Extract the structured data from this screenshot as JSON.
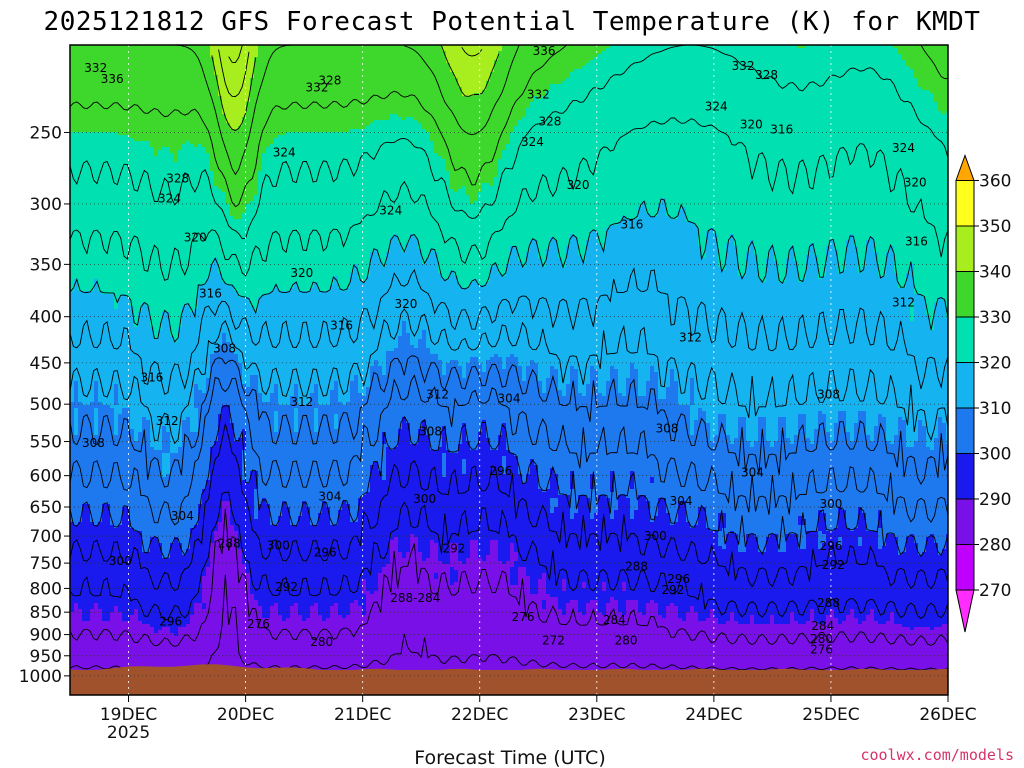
{
  "chart_data": {
    "type": "heatmap",
    "title": "2025121812 GFS Forecast Potential Temperature (K) for KMDT",
    "xlabel": "Forecast Time (UTC)",
    "ylabel": "",
    "credit": "coolwx.com/models",
    "x_tick_labels": [
      "19DEC",
      "20DEC",
      "21DEC",
      "22DEC",
      "23DEC",
      "24DEC",
      "25DEC",
      "26DEC"
    ],
    "x_tick_values": [
      19,
      20,
      21,
      22,
      23,
      24,
      25,
      26
    ],
    "x_sub_label": "2025",
    "xlim": [
      18.5,
      26.0
    ],
    "y_tick_values": [
      250,
      300,
      350,
      400,
      450,
      500,
      550,
      600,
      650,
      700,
      750,
      800,
      850,
      900,
      950,
      1000
    ],
    "y_tick_labels": [
      "250",
      "300",
      "350",
      "400",
      "450",
      "500",
      "550",
      "600",
      "650",
      "700",
      "750",
      "800",
      "850",
      "900",
      "950",
      "1000"
    ],
    "ylim": [
      200,
      1050
    ],
    "y_scale": "log-pressure",
    "grid": true,
    "colorbar": {
      "levels": [
        260,
        270,
        280,
        290,
        300,
        310,
        320,
        330,
        340,
        350,
        360,
        370
      ],
      "tick_labels": [
        "270",
        "280",
        "290",
        "300",
        "310",
        "320",
        "330",
        "340",
        "350",
        "360"
      ],
      "tick_values": [
        270,
        280,
        290,
        300,
        310,
        320,
        330,
        340,
        350,
        360
      ],
      "colors": [
        "#ff2cff",
        "#c000ff",
        "#7a10e8",
        "#1a1aee",
        "#1e78ee",
        "#15b4f0",
        "#00e0b0",
        "#3ed82c",
        "#a8ee1e",
        "#ffff1e",
        "#ffa600"
      ]
    },
    "contour_labels": [
      {
        "text": "332",
        "x": 18.72,
        "p": 212
      },
      {
        "text": "336",
        "x": 18.86,
        "p": 218
      },
      {
        "text": "332",
        "x": 20.61,
        "p": 223
      },
      {
        "text": "328",
        "x": 20.72,
        "p": 219
      },
      {
        "text": "336",
        "x": 22.55,
        "p": 203
      },
      {
        "text": "332",
        "x": 22.5,
        "p": 227
      },
      {
        "text": "328",
        "x": 22.6,
        "p": 243
      },
      {
        "text": "324",
        "x": 22.45,
        "p": 256
      },
      {
        "text": "332",
        "x": 24.25,
        "p": 211
      },
      {
        "text": "328",
        "x": 24.45,
        "p": 216
      },
      {
        "text": "324",
        "x": 24.02,
        "p": 234
      },
      {
        "text": "320",
        "x": 24.32,
        "p": 245
      },
      {
        "text": "316",
        "x": 24.58,
        "p": 248
      },
      {
        "text": "324",
        "x": 25.62,
        "p": 260
      },
      {
        "text": "320",
        "x": 25.72,
        "p": 284
      },
      {
        "text": "316",
        "x": 25.73,
        "p": 330
      },
      {
        "text": "312",
        "x": 25.62,
        "p": 386
      },
      {
        "text": "328",
        "x": 19.42,
        "p": 281
      },
      {
        "text": "324",
        "x": 19.35,
        "p": 296
      },
      {
        "text": "320",
        "x": 19.57,
        "p": 327
      },
      {
        "text": "324",
        "x": 20.33,
        "p": 263
      },
      {
        "text": "324",
        "x": 21.24,
        "p": 305
      },
      {
        "text": "320",
        "x": 22.84,
        "p": 286
      },
      {
        "text": "316",
        "x": 23.3,
        "p": 316
      },
      {
        "text": "320",
        "x": 20.48,
        "p": 358
      },
      {
        "text": "320",
        "x": 21.37,
        "p": 387
      },
      {
        "text": "316",
        "x": 19.7,
        "p": 377
      },
      {
        "text": "316",
        "x": 20.82,
        "p": 409
      },
      {
        "text": "312",
        "x": 23.8,
        "p": 422
      },
      {
        "text": "308",
        "x": 19.82,
        "p": 434
      },
      {
        "text": "316",
        "x": 19.2,
        "p": 467
      },
      {
        "text": "312",
        "x": 19.33,
        "p": 522
      },
      {
        "text": "312",
        "x": 20.48,
        "p": 497
      },
      {
        "text": "312",
        "x": 21.64,
        "p": 488
      },
      {
        "text": "304",
        "x": 22.25,
        "p": 493
      },
      {
        "text": "308",
        "x": 24.98,
        "p": 488
      },
      {
        "text": "308",
        "x": 21.58,
        "p": 536
      },
      {
        "text": "308",
        "x": 18.7,
        "p": 552
      },
      {
        "text": "308",
        "x": 23.6,
        "p": 532
      },
      {
        "text": "296",
        "x": 22.18,
        "p": 593
      },
      {
        "text": "304",
        "x": 24.33,
        "p": 595
      },
      {
        "text": "304",
        "x": 20.72,
        "p": 633
      },
      {
        "text": "300",
        "x": 21.53,
        "p": 637
      },
      {
        "text": "304",
        "x": 23.72,
        "p": 640
      },
      {
        "text": "300",
        "x": 25.0,
        "p": 645
      },
      {
        "text": "304",
        "x": 19.46,
        "p": 665
      },
      {
        "text": "300",
        "x": 23.5,
        "p": 700
      },
      {
        "text": "288",
        "x": 19.86,
        "p": 713
      },
      {
        "text": "300",
        "x": 20.28,
        "p": 717
      },
      {
        "text": "296",
        "x": 20.68,
        "p": 730
      },
      {
        "text": "292",
        "x": 21.78,
        "p": 723
      },
      {
        "text": "296",
        "x": 25.0,
        "p": 718
      },
      {
        "text": "300",
        "x": 18.93,
        "p": 746
      },
      {
        "text": "292",
        "x": 25.02,
        "p": 754
      },
      {
        "text": "288",
        "x": 23.34,
        "p": 757
      },
      {
        "text": "296",
        "x": 23.7,
        "p": 781
      },
      {
        "text": "292",
        "x": 23.65,
        "p": 803
      },
      {
        "text": "292",
        "x": 20.35,
        "p": 797
      },
      {
        "text": "288-284",
        "x": 21.45,
        "p": 820
      },
      {
        "text": "288",
        "x": 24.98,
        "p": 830
      },
      {
        "text": "296",
        "x": 19.36,
        "p": 871
      },
      {
        "text": "276",
        "x": 20.11,
        "p": 876
      },
      {
        "text": "276",
        "x": 22.37,
        "p": 860
      },
      {
        "text": "284",
        "x": 23.15,
        "p": 867
      },
      {
        "text": "284",
        "x": 24.93,
        "p": 880
      },
      {
        "text": "280",
        "x": 20.65,
        "p": 917
      },
      {
        "text": "272",
        "x": 22.63,
        "p": 914
      },
      {
        "text": "280",
        "x": 23.25,
        "p": 914
      },
      {
        "text": "280",
        "x": 24.92,
        "p": 910
      },
      {
        "text": "276",
        "x": 24.92,
        "p": 935
      }
    ]
  }
}
